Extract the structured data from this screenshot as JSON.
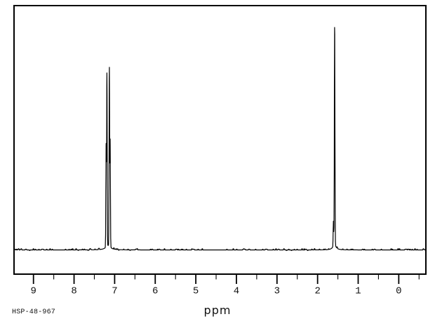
{
  "chart_data": {
    "type": "line",
    "subtype": "1H-NMR-spectrum",
    "xlabel": "ppm",
    "x_axis": {
      "direction": "reversed",
      "visible_range_ppm": [
        9.6,
        -0.67
      ],
      "major_ticks": [
        9,
        8,
        7,
        6,
        5,
        4,
        3,
        2,
        1,
        0
      ],
      "tick_labels": [
        "9",
        "8",
        "7",
        "6",
        "5",
        "4",
        "3",
        "2",
        "1",
        "0"
      ],
      "minor_tick_step": 0.5
    },
    "y_axis": {
      "shown": false
    },
    "peaks": [
      {
        "ppm": 7.21,
        "intensity": 0.46,
        "width_ppm": 0.009,
        "shape": "sharp"
      },
      {
        "ppm": 7.19,
        "intensity": 0.775,
        "width_ppm": 0.009,
        "shape": "sharp"
      },
      {
        "ppm": 7.13,
        "intensity": 0.8,
        "width_ppm": 0.009,
        "shape": "sharp"
      },
      {
        "ppm": 7.11,
        "intensity": 0.48,
        "width_ppm": 0.009,
        "shape": "sharp"
      },
      {
        "ppm": 7.16,
        "intensity": 0.02,
        "width_ppm": 0.07,
        "shape": "broad"
      },
      {
        "ppm": 1.61,
        "intensity": 0.11,
        "width_ppm": 0.009,
        "shape": "sharp"
      },
      {
        "ppm": 1.58,
        "intensity": 0.975,
        "width_ppm": 0.01,
        "shape": "sharp"
      },
      {
        "ppm": 1.585,
        "intensity": 0.025,
        "width_ppm": 0.045,
        "shape": "broad"
      }
    ],
    "baseline_noise_level": 0.004,
    "line_color": "#000000",
    "background_color": "#ffffff",
    "text_color": "#111111"
  },
  "annotation": {
    "sample_id": "HSP-48-967"
  }
}
